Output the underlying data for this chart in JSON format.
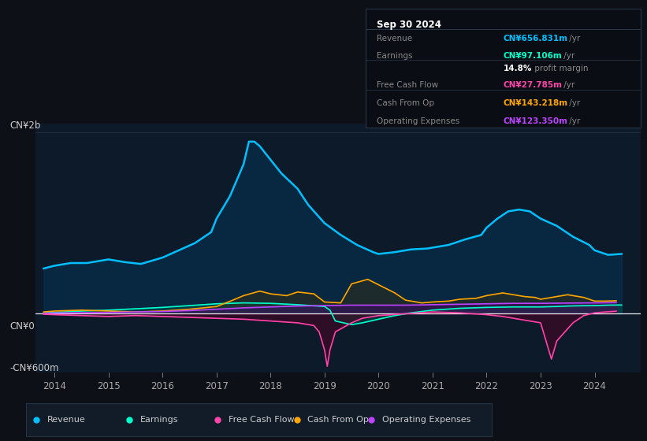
{
  "bg_color": "#0d1117",
  "chart_bg_color": "#0d1a2a",
  "ylabel_top": "CN¥2b",
  "ylabel_zero": "CN¥0",
  "ylabel_bottom": "-CN¥600m",
  "x_ticks": [
    2014,
    2015,
    2016,
    2017,
    2018,
    2019,
    2020,
    2021,
    2022,
    2023,
    2024
  ],
  "info_box": {
    "title": "Sep 30 2024",
    "rows": [
      {
        "label": "Revenue",
        "value": "CN¥656.831m",
        "suffix": " /yr",
        "color": "#00bfff"
      },
      {
        "label": "Earnings",
        "value": "CN¥97.106m",
        "suffix": " /yr",
        "color": "#00ffcc"
      },
      {
        "label": "",
        "value": "14.8%",
        "suffix": " profit margin",
        "color": "#ffffff"
      },
      {
        "label": "Free Cash Flow",
        "value": "CN¥27.785m",
        "suffix": " /yr",
        "color": "#ff44aa"
      },
      {
        "label": "Cash From Op",
        "value": "CN¥143.218m",
        "suffix": " /yr",
        "color": "#ffa500"
      },
      {
        "label": "Operating Expenses",
        "value": "CN¥123.350m",
        "suffix": " /yr",
        "color": "#bb44ff"
      }
    ]
  },
  "legend": [
    {
      "label": "Revenue",
      "color": "#00bfff"
    },
    {
      "label": "Earnings",
      "color": "#00ffcc"
    },
    {
      "label": "Free Cash Flow",
      "color": "#ff44aa"
    },
    {
      "label": "Cash From Op",
      "color": "#ffa500"
    },
    {
      "label": "Operating Expenses",
      "color": "#bb44ff"
    }
  ],
  "revenue": {
    "x": [
      2013.8,
      2014.0,
      2014.3,
      2014.6,
      2015.0,
      2015.3,
      2015.6,
      2016.0,
      2016.3,
      2016.6,
      2016.9,
      2017.0,
      2017.25,
      2017.5,
      2017.6,
      2017.7,
      2017.8,
      2018.0,
      2018.2,
      2018.5,
      2018.7,
      2019.0,
      2019.3,
      2019.6,
      2019.9,
      2020.0,
      2020.3,
      2020.6,
      2020.9,
      2021.0,
      2021.3,
      2021.6,
      2021.9,
      2022.0,
      2022.2,
      2022.4,
      2022.6,
      2022.8,
      2023.0,
      2023.3,
      2023.6,
      2023.9,
      2024.0,
      2024.25,
      2024.5
    ],
    "y": [
      500,
      530,
      560,
      560,
      600,
      570,
      550,
      620,
      700,
      780,
      900,
      1050,
      1300,
      1650,
      1900,
      1900,
      1850,
      1700,
      1550,
      1380,
      1200,
      1000,
      870,
      760,
      680,
      660,
      680,
      710,
      720,
      730,
      760,
      820,
      870,
      950,
      1050,
      1130,
      1150,
      1130,
      1050,
      970,
      850,
      760,
      700,
      650,
      660
    ]
  },
  "earnings": {
    "x": [
      2013.8,
      2014.0,
      2014.5,
      2015.0,
      2015.5,
      2016.0,
      2016.5,
      2017.0,
      2017.5,
      2018.0,
      2018.5,
      2019.0,
      2019.1,
      2019.2,
      2019.5,
      2019.7,
      2020.0,
      2020.3,
      2020.6,
      2021.0,
      2021.5,
      2022.0,
      2022.5,
      2023.0,
      2023.3,
      2023.5,
      2023.7,
      2024.0,
      2024.25,
      2024.5
    ],
    "y": [
      10,
      15,
      30,
      40,
      55,
      70,
      90,
      110,
      120,
      115,
      100,
      80,
      40,
      -80,
      -120,
      -100,
      -60,
      -20,
      10,
      40,
      60,
      70,
      75,
      75,
      80,
      85,
      88,
      90,
      95,
      97
    ]
  },
  "free_cash_flow": {
    "x": [
      2013.8,
      2014.0,
      2014.5,
      2015.0,
      2015.5,
      2016.0,
      2016.5,
      2017.0,
      2017.5,
      2018.0,
      2018.5,
      2018.8,
      2018.9,
      2019.0,
      2019.05,
      2019.1,
      2019.2,
      2019.5,
      2019.7,
      2020.0,
      2020.5,
      2021.0,
      2021.5,
      2022.0,
      2022.3,
      2022.5,
      2022.8,
      2023.0,
      2023.1,
      2023.2,
      2023.3,
      2023.6,
      2023.8,
      2024.0,
      2024.2,
      2024.4
    ],
    "y": [
      -5,
      -10,
      -20,
      -30,
      -20,
      -30,
      -40,
      -50,
      -60,
      -80,
      -100,
      -130,
      -200,
      -400,
      -580,
      -400,
      -200,
      -100,
      -50,
      -20,
      0,
      20,
      10,
      -10,
      -30,
      -50,
      -80,
      -100,
      -300,
      -500,
      -300,
      -100,
      -20,
      10,
      20,
      28
    ]
  },
  "cash_from_op": {
    "x": [
      2013.8,
      2014.0,
      2014.5,
      2015.0,
      2015.5,
      2016.0,
      2016.5,
      2017.0,
      2017.3,
      2017.5,
      2017.8,
      2018.0,
      2018.3,
      2018.5,
      2018.8,
      2019.0,
      2019.3,
      2019.5,
      2019.8,
      2020.0,
      2020.3,
      2020.5,
      2020.8,
      2021.0,
      2021.3,
      2021.5,
      2021.8,
      2022.0,
      2022.3,
      2022.5,
      2022.7,
      2022.9,
      2023.0,
      2023.3,
      2023.5,
      2023.8,
      2024.0,
      2024.2,
      2024.4
    ],
    "y": [
      20,
      30,
      40,
      30,
      20,
      30,
      50,
      80,
      150,
      200,
      250,
      220,
      200,
      240,
      220,
      130,
      120,
      330,
      380,
      320,
      230,
      150,
      120,
      130,
      140,
      160,
      170,
      200,
      230,
      210,
      190,
      180,
      160,
      190,
      210,
      180,
      140,
      140,
      143
    ]
  },
  "operating_expenses": {
    "x": [
      2013.8,
      2014.0,
      2014.5,
      2015.0,
      2015.5,
      2016.0,
      2016.5,
      2017.0,
      2017.5,
      2018.0,
      2018.5,
      2019.0,
      2019.5,
      2020.0,
      2020.5,
      2021.0,
      2021.5,
      2022.0,
      2022.5,
      2023.0,
      2023.5,
      2024.0,
      2024.4
    ],
    "y": [
      5,
      8,
      12,
      15,
      20,
      25,
      35,
      50,
      65,
      75,
      85,
      90,
      95,
      95,
      95,
      100,
      105,
      110,
      115,
      115,
      118,
      120,
      123
    ]
  },
  "ylim": [
    -650,
    2100
  ],
  "xlim": [
    2013.65,
    2024.85
  ],
  "zero_y": 0
}
